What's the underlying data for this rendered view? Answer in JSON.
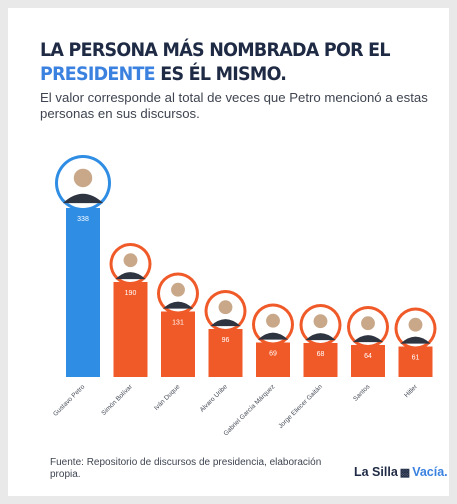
{
  "header": {
    "title_part1": "LA PERSONA MÁS NOMBRADA POR EL",
    "title_highlight": "PRESIDENTE",
    "title_part2": "ES ÉL MISMO.",
    "subtitle": "El valor corresponde al total de veces que Petro mencionó a estas personas en sus discursos."
  },
  "chart_data": {
    "type": "bar",
    "categories": [
      "Gustavo Petro",
      "Simón Bolívar",
      "Iván Duque",
      "Alvaro Uribe",
      "Gabriel García Márquez",
      "Jorge Eliecer Gaitán",
      "Santos",
      "Hitler"
    ],
    "values": [
      338,
      190,
      131,
      96,
      69,
      68,
      64,
      61
    ],
    "colors": [
      "#2f8de4",
      "#f05a28",
      "#f05a28",
      "#f05a28",
      "#f05a28",
      "#f05a28",
      "#f05a28",
      "#f05a28"
    ],
    "portrait_icons": [
      "portrait-petro-icon",
      "portrait-bolivar-icon",
      "portrait-duque-icon",
      "portrait-uribe-icon",
      "portrait-garcia-marquez-icon",
      "portrait-gaitan-icon",
      "portrait-santos-icon",
      "portrait-hitler-icon"
    ],
    "title": "LA PERSONA MÁS NOMBRADA POR EL PRESIDENTE ES ÉL MISMO.",
    "xlabel": "",
    "ylabel": "",
    "ylim": [
      0,
      338
    ],
    "grid": false,
    "data_labels": true
  },
  "footer": {
    "source": "Fuente: Repositorio de discursos de presidencia, elaboración propia.",
    "logo_part1": "La Silla",
    "logo_part2": "Vacía."
  }
}
